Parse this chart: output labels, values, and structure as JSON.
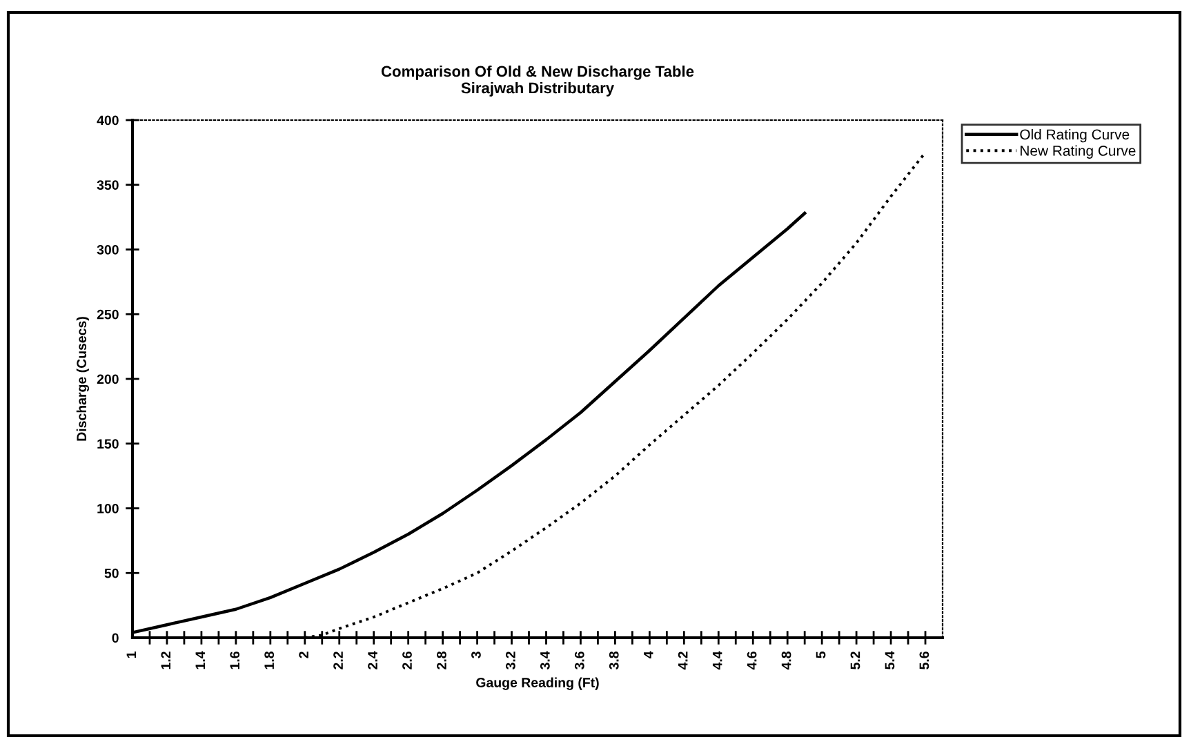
{
  "chart_data": {
    "type": "line",
    "title": "Comparison Of Old & New Discharge Table\nSirajwah Distributary",
    "xlabel": "Gauge Reading (Ft)",
    "ylabel": "Discharge (Cusecs)",
    "xlim": [
      1,
      5.7
    ],
    "ylim": [
      0,
      400
    ],
    "yticks": [
      0,
      50,
      100,
      150,
      200,
      250,
      300,
      350,
      400
    ],
    "xticks": [
      1,
      {
        "value": 1.1,
        "label": null
      },
      {
        "value": 1.2,
        "label": "1.2"
      },
      {
        "value": 1.3,
        "label": null
      },
      {
        "value": 1.4,
        "label": "1.4"
      },
      {
        "value": 1.5,
        "label": null
      },
      {
        "value": 1.6,
        "label": "1.6"
      },
      {
        "value": 1.7,
        "label": null
      },
      {
        "value": 1.8,
        "label": "1.8"
      },
      {
        "value": 1.9,
        "label": null
      },
      2,
      {
        "value": 2.1,
        "label": null
      },
      {
        "value": 2.2,
        "label": "2.2"
      },
      {
        "value": 2.3,
        "label": null
      },
      {
        "value": 2.4,
        "label": "2.4"
      },
      {
        "value": 2.5,
        "label": null
      },
      {
        "value": 2.6,
        "label": "2.6"
      },
      {
        "value": 2.7,
        "label": null
      },
      {
        "value": 2.8,
        "label": "2.8"
      },
      {
        "value": 2.9,
        "label": null
      },
      3,
      {
        "value": 3.1,
        "label": null
      },
      {
        "value": 3.2,
        "label": "3.2"
      },
      {
        "value": 3.3,
        "label": null
      },
      {
        "value": 3.4,
        "label": "3.4"
      },
      {
        "value": 3.5,
        "label": null
      },
      {
        "value": 3.6,
        "label": "3.6"
      },
      {
        "value": 3.7,
        "label": null
      },
      {
        "value": 3.8,
        "label": "3.8"
      },
      {
        "value": 3.9,
        "label": null
      },
      4,
      {
        "value": 4.1,
        "label": null
      },
      {
        "value": 4.2,
        "label": "4.2"
      },
      {
        "value": 4.3,
        "label": null
      },
      {
        "value": 4.4,
        "label": "4.4"
      },
      {
        "value": 4.5,
        "label": null
      },
      {
        "value": 4.6,
        "label": "4.6"
      },
      {
        "value": 4.7,
        "label": null
      },
      {
        "value": 4.8,
        "label": "4.8"
      },
      {
        "value": 4.9,
        "label": null
      },
      5,
      {
        "value": 5.1,
        "label": null
      },
      {
        "value": 5.2,
        "label": "5.2"
      },
      {
        "value": 5.3,
        "label": null
      },
      {
        "value": 5.4,
        "label": "5.4"
      },
      {
        "value": 5.5,
        "label": null
      },
      {
        "value": 5.6,
        "label": "5.6"
      }
    ],
    "legend": "top right",
    "grid": false,
    "marker": "none",
    "series": [
      {
        "name": "Old Rating Curve",
        "color": "#000000",
        "line_style": "solid",
        "x": [
          1.0,
          1.2,
          1.4,
          1.6,
          1.8,
          2.0,
          2.2,
          2.4,
          2.6,
          2.8,
          3.0,
          3.2,
          3.4,
          3.6,
          3.8,
          4.0,
          4.2,
          4.4,
          4.6,
          4.8,
          4.9
        ],
        "values": [
          4,
          10,
          16,
          22,
          31,
          42,
          53,
          66,
          80,
          96,
          114,
          133,
          153,
          174,
          198,
          222,
          247,
          272,
          294,
          316,
          328
        ]
      },
      {
        "name": "New Rating Curve",
        "color": "#000000",
        "line_style": "dotted",
        "x": [
          2.0,
          2.1,
          2.2,
          2.4,
          2.6,
          2.8,
          3.0,
          3.2,
          3.4,
          3.6,
          3.8,
          4.0,
          4.2,
          4.4,
          4.6,
          4.8,
          5.0,
          5.2,
          5.4,
          5.6
        ],
        "values": [
          0,
          2,
          7,
          16,
          27,
          38,
          50,
          67,
          85,
          104,
          125,
          149,
          172,
          195,
          220,
          246,
          274,
          305,
          341,
          375
        ]
      }
    ]
  }
}
